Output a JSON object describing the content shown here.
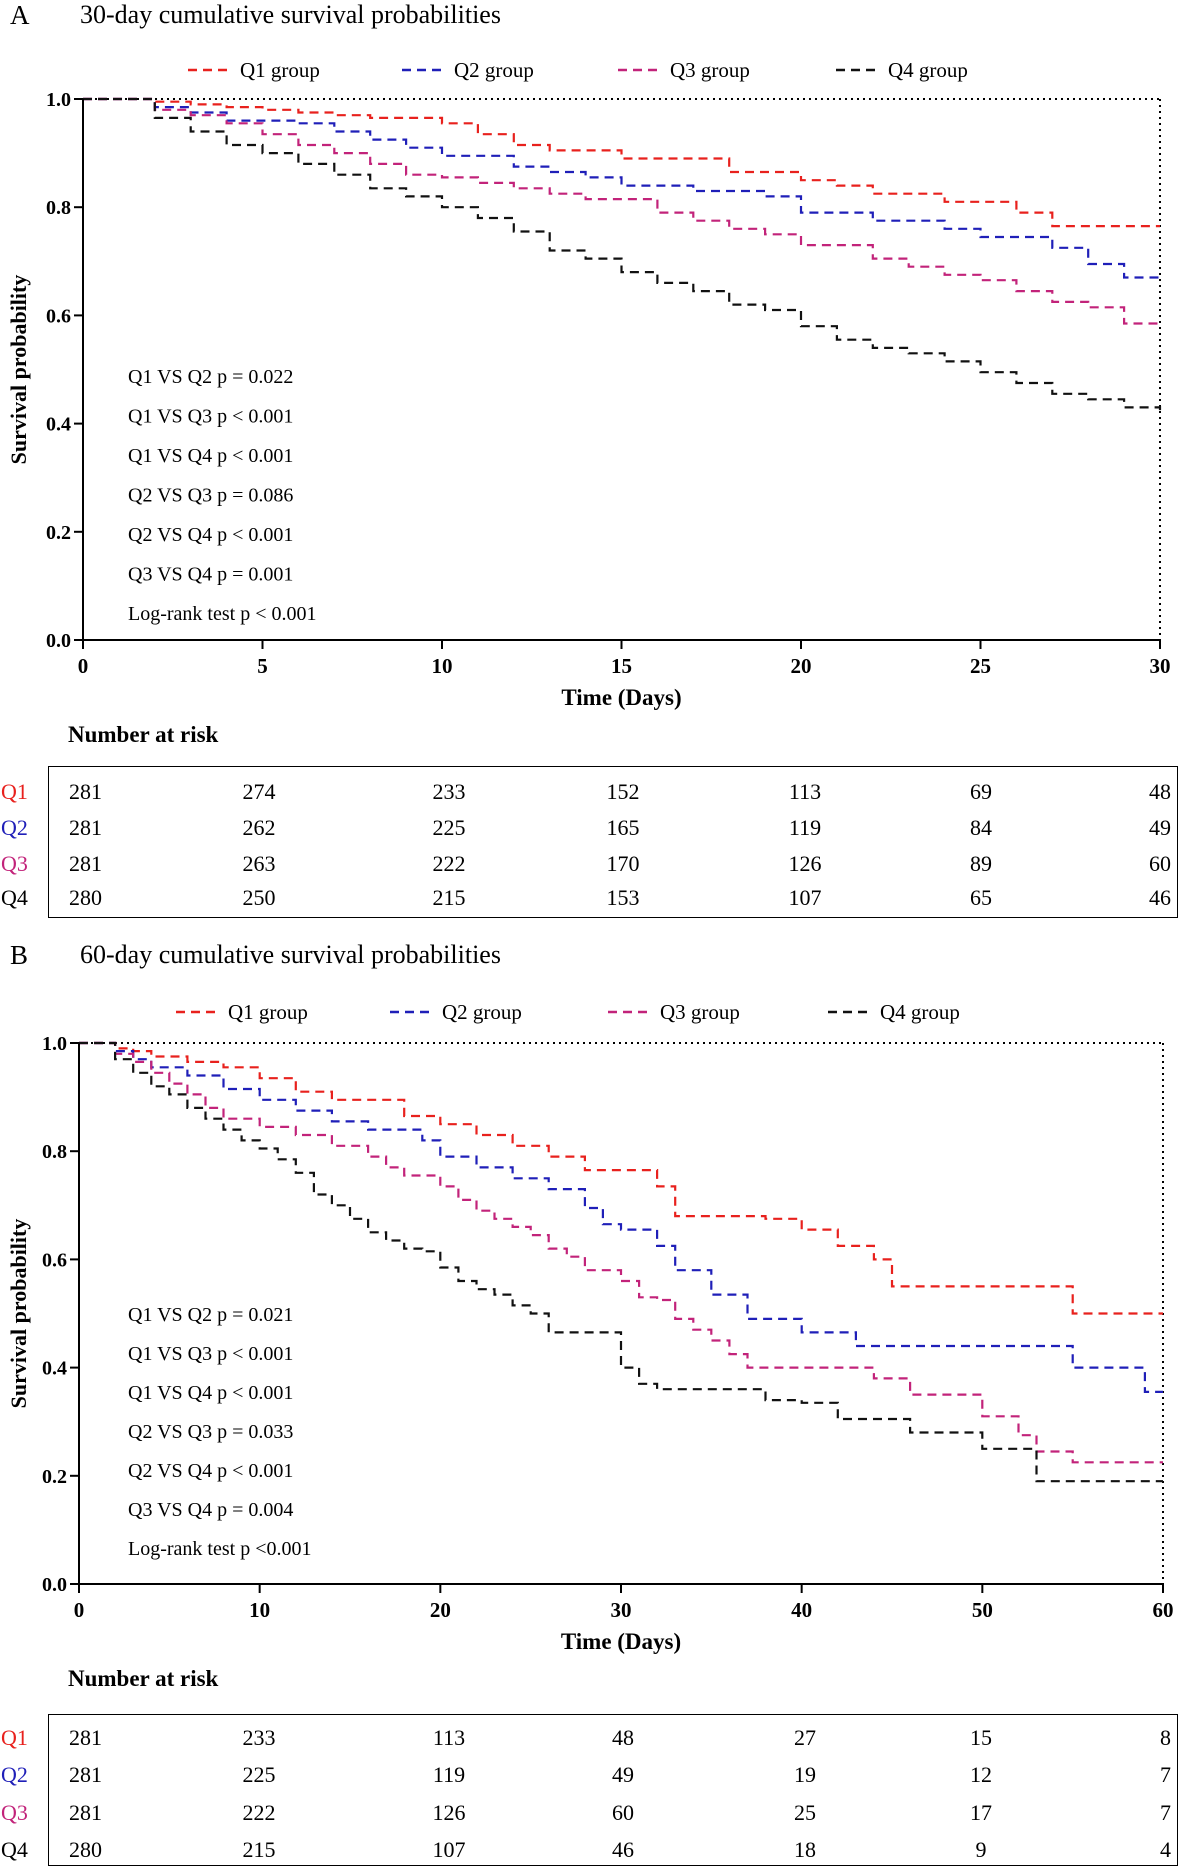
{
  "colors": {
    "Q1": "#e8211d",
    "Q2": "#1f1fb8",
    "Q3": "#c2237a",
    "Q4": "#111111"
  },
  "chart_data": [
    {
      "panel": "A",
      "type": "line",
      "title": "30-day cumulative survival probabilities",
      "xlabel": "Time (Days)",
      "ylabel": "Survival probability",
      "xlim": [
        0,
        30
      ],
      "ylim": [
        0,
        1.0
      ],
      "xticks": [
        "0",
        "5",
        "10",
        "15",
        "20",
        "25",
        "30"
      ],
      "yticks": [
        "0.0",
        "0.2",
        "0.4",
        "0.6",
        "0.8",
        "1.0"
      ],
      "legend": [
        "Q1 group",
        "Q2  group",
        "Q3 group",
        "Q4 group"
      ],
      "series": [
        {
          "name": "Q1",
          "x": [
            0,
            2,
            3,
            4,
            5,
            6,
            7,
            8,
            10,
            11,
            12,
            13,
            15,
            18,
            20,
            21,
            22,
            24,
            26,
            27,
            30
          ],
          "y": [
            1.0,
            0.995,
            0.99,
            0.985,
            0.98,
            0.975,
            0.97,
            0.965,
            0.955,
            0.935,
            0.915,
            0.905,
            0.89,
            0.865,
            0.85,
            0.84,
            0.825,
            0.81,
            0.79,
            0.765,
            0.765
          ]
        },
        {
          "name": "Q2",
          "x": [
            0,
            2,
            3,
            4,
            6,
            7,
            8,
            9,
            10,
            12,
            13,
            14,
            15,
            17,
            19,
            20,
            22,
            24,
            25,
            27,
            28,
            29,
            30
          ],
          "y": [
            1.0,
            0.985,
            0.975,
            0.96,
            0.955,
            0.94,
            0.925,
            0.91,
            0.895,
            0.875,
            0.865,
            0.855,
            0.84,
            0.83,
            0.82,
            0.79,
            0.775,
            0.76,
            0.745,
            0.725,
            0.695,
            0.67,
            0.67
          ]
        },
        {
          "name": "Q3",
          "x": [
            0,
            2,
            3,
            4,
            5,
            6,
            7,
            8,
            9,
            10,
            11,
            12,
            13,
            14,
            16,
            17,
            18,
            19,
            20,
            22,
            23,
            24,
            25,
            26,
            27,
            28,
            29,
            30
          ],
          "y": [
            1.0,
            0.98,
            0.97,
            0.955,
            0.935,
            0.915,
            0.9,
            0.88,
            0.86,
            0.855,
            0.845,
            0.835,
            0.825,
            0.815,
            0.79,
            0.775,
            0.76,
            0.75,
            0.73,
            0.705,
            0.69,
            0.675,
            0.665,
            0.645,
            0.625,
            0.615,
            0.585,
            0.585
          ]
        },
        {
          "name": "Q4",
          "x": [
            0,
            2,
            3,
            4,
            5,
            6,
            7,
            8,
            9,
            10,
            11,
            12,
            13,
            14,
            15,
            16,
            17,
            18,
            19,
            20,
            21,
            22,
            23,
            24,
            25,
            26,
            27,
            28,
            29,
            30
          ],
          "y": [
            1.0,
            0.965,
            0.94,
            0.915,
            0.9,
            0.88,
            0.86,
            0.835,
            0.82,
            0.8,
            0.78,
            0.755,
            0.72,
            0.705,
            0.68,
            0.66,
            0.645,
            0.62,
            0.61,
            0.58,
            0.555,
            0.54,
            0.53,
            0.515,
            0.495,
            0.475,
            0.455,
            0.445,
            0.43,
            0.425
          ]
        }
      ],
      "annotations": [
        "Q1 VS Q2  p = 0.022",
        "Q1 VS Q3  p < 0.001",
        "Q1 VS Q4  p < 0.001",
        "Q2 VS Q3  p = 0.086",
        "Q2 VS Q4  p < 0.001",
        "Q3 VS Q4  p = 0.001",
        "Log-rank test  p < 0.001"
      ],
      "risk_table": {
        "title": "Number at risk",
        "rows": [
          {
            "label": "Q1",
            "values": [
              "281",
              "274",
              "233",
              "152",
              "113",
              "69",
              "48"
            ]
          },
          {
            "label": "Q2",
            "values": [
              "281",
              "262",
              "225",
              "165",
              "119",
              "84",
              "49"
            ]
          },
          {
            "label": "Q3",
            "values": [
              "281",
              "263",
              "222",
              "170",
              "126",
              "89",
              "60"
            ]
          },
          {
            "label": "Q4",
            "values": [
              "280",
              "250",
              "215",
              "153",
              "107",
              "65",
              "46"
            ]
          }
        ]
      }
    },
    {
      "panel": "B",
      "type": "line",
      "title": "60-day cumulative survival probabilities",
      "xlabel": "Time (Days)",
      "ylabel": "Survival probability",
      "xlim": [
        0,
        60
      ],
      "ylim": [
        0,
        1.0
      ],
      "xticks": [
        "0",
        "10",
        "20",
        "30",
        "40",
        "50",
        "60"
      ],
      "yticks": [
        "0.0",
        "0.2",
        "0.4",
        "0.6",
        "0.8",
        "1.0"
      ],
      "legend": [
        "Q1 group",
        "Q2 group",
        "Q3 group",
        "Q4 group"
      ],
      "series": [
        {
          "name": "Q1",
          "x": [
            0,
            2,
            3,
            4,
            6,
            8,
            10,
            12,
            14,
            18,
            20,
            22,
            24,
            26,
            28,
            32,
            33,
            38,
            40,
            42,
            44,
            45,
            50,
            55,
            60
          ],
          "y": [
            1.0,
            0.99,
            0.985,
            0.975,
            0.965,
            0.955,
            0.935,
            0.91,
            0.895,
            0.865,
            0.85,
            0.83,
            0.81,
            0.79,
            0.765,
            0.735,
            0.68,
            0.675,
            0.655,
            0.625,
            0.6,
            0.55,
            0.55,
            0.5,
            0.5
          ]
        },
        {
          "name": "Q2",
          "x": [
            0,
            2,
            3,
            4,
            6,
            8,
            10,
            12,
            14,
            16,
            19,
            20,
            22,
            24,
            26,
            28,
            29,
            30,
            32,
            33,
            35,
            37,
            38,
            40,
            43,
            48,
            52,
            55,
            59,
            60
          ],
          "y": [
            1.0,
            0.985,
            0.97,
            0.955,
            0.94,
            0.915,
            0.895,
            0.875,
            0.855,
            0.84,
            0.82,
            0.79,
            0.77,
            0.75,
            0.73,
            0.695,
            0.665,
            0.655,
            0.625,
            0.58,
            0.535,
            0.49,
            0.49,
            0.465,
            0.44,
            0.44,
            0.44,
            0.4,
            0.355,
            0.355
          ]
        },
        {
          "name": "Q3",
          "x": [
            0,
            2,
            3,
            4,
            5,
            6,
            7,
            8,
            10,
            12,
            14,
            16,
            17,
            18,
            20,
            21,
            22,
            23,
            24,
            25,
            26,
            27,
            28,
            30,
            31,
            32,
            33,
            34,
            35,
            36,
            37,
            38,
            40,
            44,
            46,
            48,
            50,
            52,
            53,
            55,
            60
          ],
          "y": [
            1.0,
            0.98,
            0.965,
            0.945,
            0.925,
            0.905,
            0.88,
            0.86,
            0.845,
            0.83,
            0.81,
            0.79,
            0.77,
            0.755,
            0.735,
            0.71,
            0.69,
            0.675,
            0.66,
            0.645,
            0.62,
            0.605,
            0.58,
            0.56,
            0.53,
            0.525,
            0.49,
            0.47,
            0.45,
            0.425,
            0.4,
            0.4,
            0.4,
            0.38,
            0.35,
            0.35,
            0.31,
            0.275,
            0.245,
            0.225,
            0.225
          ]
        },
        {
          "name": "Q4",
          "x": [
            0,
            2,
            3,
            4,
            5,
            6,
            7,
            8,
            9,
            10,
            11,
            12,
            13,
            14,
            15,
            16,
            17,
            18,
            19,
            20,
            21,
            22,
            23,
            24,
            25,
            26,
            30,
            31,
            32,
            36,
            38,
            40,
            42,
            46,
            50,
            53,
            56,
            60
          ],
          "y": [
            1.0,
            0.97,
            0.945,
            0.92,
            0.905,
            0.88,
            0.86,
            0.84,
            0.82,
            0.805,
            0.785,
            0.76,
            0.72,
            0.7,
            0.675,
            0.65,
            0.635,
            0.62,
            0.615,
            0.585,
            0.56,
            0.545,
            0.535,
            0.515,
            0.5,
            0.465,
            0.4,
            0.37,
            0.36,
            0.36,
            0.34,
            0.335,
            0.305,
            0.28,
            0.25,
            0.19,
            0.19,
            0.19
          ]
        }
      ],
      "annotations": [
        "Q1 VS Q2  p = 0.021",
        "Q1 VS Q3  p < 0.001",
        "Q1 VS Q4  p < 0.001",
        "Q2 VS Q3  p = 0.033",
        "Q2 VS Q4  p < 0.001",
        "Q3 VS Q4  p = 0.004",
        "Log-rank test  p <0.001"
      ],
      "risk_table": {
        "title": "Number at risk",
        "rows": [
          {
            "label": "Q1",
            "values": [
              "281",
              "233",
              "113",
              "48",
              "27",
              "15",
              "8"
            ]
          },
          {
            "label": "Q2",
            "values": [
              "281",
              "225",
              "119",
              "49",
              "19",
              "12",
              "7"
            ]
          },
          {
            "label": "Q3",
            "values": [
              "281",
              "222",
              "126",
              "60",
              "25",
              "17",
              "7"
            ]
          },
          {
            "label": "Q4",
            "values": [
              "280",
              "215",
              "107",
              "46",
              "18",
              "9",
              "4"
            ]
          }
        ]
      }
    }
  ]
}
